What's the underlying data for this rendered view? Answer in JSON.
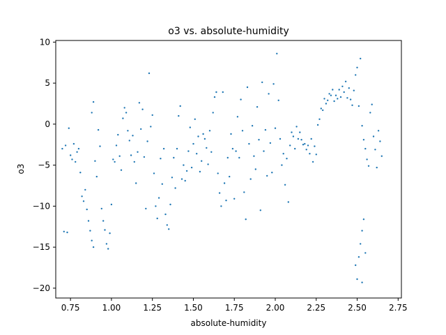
{
  "chart_data": {
    "type": "scatter",
    "title": "o3 vs. absolute-humidity",
    "xlabel": "absolute-humidity",
    "ylabel": "o3",
    "xlim": [
      0.66,
      2.77
    ],
    "ylim": [
      -21.2,
      10.2
    ],
    "x_ticks": [
      0.75,
      1.0,
      1.25,
      1.5,
      1.75,
      2.0,
      2.25,
      2.5,
      2.75
    ],
    "x_tick_labels": [
      "0.75",
      "1.00",
      "1.25",
      "1.50",
      "1.75",
      "2.00",
      "2.25",
      "2.50",
      "2.75"
    ],
    "y_ticks": [
      -20,
      -15,
      -10,
      -5,
      0,
      5,
      10
    ],
    "y_tick_labels": [
      "−20",
      "−15",
      "−10",
      "−5",
      "0",
      "5",
      "10"
    ],
    "grid": false,
    "marker_color": "#1f77b4",
    "series": [
      {
        "values": [
          [
            0.7,
            -3.0
          ],
          [
            0.71,
            -13.1
          ],
          [
            0.72,
            -2.6
          ],
          [
            0.73,
            -13.2
          ],
          [
            0.74,
            -0.5
          ],
          [
            0.75,
            -3.8
          ],
          [
            0.76,
            -4.3
          ],
          [
            0.77,
            -2.4
          ],
          [
            0.78,
            -4.6
          ],
          [
            0.79,
            -3.4
          ],
          [
            0.8,
            -3.0
          ],
          [
            0.81,
            -5.9
          ],
          [
            0.82,
            -8.8
          ],
          [
            0.83,
            -9.4
          ],
          [
            0.84,
            -8.0
          ],
          [
            0.85,
            -10.4
          ],
          [
            0.86,
            -11.8
          ],
          [
            0.87,
            -13.0
          ],
          [
            0.88,
            -14.2
          ],
          [
            0.88,
            1.4
          ],
          [
            0.89,
            2.7
          ],
          [
            0.89,
            -15.0
          ],
          [
            0.9,
            -4.5
          ],
          [
            0.91,
            -6.4
          ],
          [
            0.92,
            -0.7
          ],
          [
            0.93,
            -2.7
          ],
          [
            0.94,
            -10.3
          ],
          [
            0.95,
            -11.8
          ],
          [
            0.96,
            -12.9
          ],
          [
            0.97,
            -14.6
          ],
          [
            0.98,
            -15.2
          ],
          [
            0.99,
            -13.3
          ],
          [
            1.0,
            -9.8
          ],
          [
            1.01,
            -4.3
          ],
          [
            1.02,
            -4.6
          ],
          [
            1.03,
            -2.6
          ],
          [
            1.04,
            -1.3
          ],
          [
            1.05,
            -3.9
          ],
          [
            1.06,
            -5.6
          ],
          [
            1.07,
            0.7
          ],
          [
            1.08,
            2.0
          ],
          [
            1.09,
            1.4
          ],
          [
            1.1,
            -0.8
          ],
          [
            1.11,
            -2.0
          ],
          [
            1.12,
            -3.8
          ],
          [
            1.13,
            -1.4
          ],
          [
            1.14,
            -4.6
          ],
          [
            1.15,
            -7.2
          ],
          [
            1.16,
            -3.4
          ],
          [
            1.17,
            2.6
          ],
          [
            1.18,
            -0.6
          ],
          [
            1.19,
            1.8
          ],
          [
            1.2,
            -4.0
          ],
          [
            1.21,
            -10.3
          ],
          [
            1.22,
            -2.1
          ],
          [
            1.23,
            6.2
          ],
          [
            1.24,
            -0.3
          ],
          [
            1.25,
            1.1
          ],
          [
            1.26,
            -6.0
          ],
          [
            1.27,
            -10.0
          ],
          [
            1.28,
            -11.5
          ],
          [
            1.29,
            -9.0
          ],
          [
            1.3,
            -4.2
          ],
          [
            1.31,
            -7.3
          ],
          [
            1.32,
            -3.0
          ],
          [
            1.33,
            -11.0
          ],
          [
            1.34,
            -12.3
          ],
          [
            1.35,
            -12.8
          ],
          [
            1.36,
            -9.8
          ],
          [
            1.37,
            -6.5
          ],
          [
            1.38,
            -4.1
          ],
          [
            1.39,
            -7.8
          ],
          [
            1.4,
            -3.0
          ],
          [
            1.41,
            1.0
          ],
          [
            1.42,
            2.2
          ],
          [
            1.43,
            -6.7
          ],
          [
            1.44,
            -5.0
          ],
          [
            1.45,
            -6.9
          ],
          [
            1.46,
            -5.7
          ],
          [
            1.47,
            -3.3
          ],
          [
            1.48,
            -0.4
          ],
          [
            1.49,
            -5.3
          ],
          [
            1.5,
            -2.4
          ],
          [
            1.51,
            0.6
          ],
          [
            1.52,
            -3.6
          ],
          [
            1.53,
            -1.5
          ],
          [
            1.54,
            -5.8
          ],
          [
            1.55,
            -4.5
          ],
          [
            1.56,
            -1.2
          ],
          [
            1.57,
            -1.8
          ],
          [
            1.58,
            -2.9
          ],
          [
            1.59,
            -4.9
          ],
          [
            1.6,
            -0.8
          ],
          [
            1.61,
            -3.4
          ],
          [
            1.62,
            1.4
          ],
          [
            1.63,
            3.3
          ],
          [
            1.64,
            3.9
          ],
          [
            1.65,
            -6.0
          ],
          [
            1.66,
            -8.4
          ],
          [
            1.67,
            -10.0
          ],
          [
            1.68,
            3.9
          ],
          [
            1.69,
            -7.2
          ],
          [
            1.7,
            -9.3
          ],
          [
            1.71,
            -4.1
          ],
          [
            1.72,
            -6.4
          ],
          [
            1.73,
            -1.2
          ],
          [
            1.74,
            -3.0
          ],
          [
            1.75,
            -9.1
          ],
          [
            1.76,
            -3.3
          ],
          [
            1.77,
            0.9
          ],
          [
            1.78,
            -4.1
          ],
          [
            1.79,
            3.0
          ],
          [
            1.8,
            -0.8
          ],
          [
            1.81,
            -8.3
          ],
          [
            1.82,
            -11.6
          ],
          [
            1.83,
            4.5
          ],
          [
            1.84,
            -2.4
          ],
          [
            1.85,
            -6.7
          ],
          [
            1.86,
            -0.2
          ],
          [
            1.87,
            -3.9
          ],
          [
            1.88,
            -5.5
          ],
          [
            1.89,
            2.1
          ],
          [
            1.9,
            -1.9
          ],
          [
            1.91,
            -10.5
          ],
          [
            1.92,
            5.1
          ],
          [
            1.93,
            -3.3
          ],
          [
            1.94,
            -0.7
          ],
          [
            1.95,
            -6.3
          ],
          [
            1.96,
            3.7
          ],
          [
            1.97,
            -2.3
          ],
          [
            1.98,
            -5.9
          ],
          [
            1.99,
            4.9
          ],
          [
            2.0,
            -0.5
          ],
          [
            2.01,
            8.6
          ],
          [
            2.02,
            2.9
          ],
          [
            2.03,
            -1.8
          ],
          [
            2.04,
            -5.0
          ],
          [
            2.05,
            -3.6
          ],
          [
            2.06,
            -7.4
          ],
          [
            2.07,
            -4.2
          ],
          [
            2.08,
            -9.5
          ],
          [
            2.09,
            -2.6
          ],
          [
            2.1,
            -1.0
          ],
          [
            2.11,
            -1.5
          ],
          [
            2.12,
            -3.0
          ],
          [
            2.13,
            -0.3
          ],
          [
            2.14,
            -1.8
          ],
          [
            2.15,
            -1.0
          ],
          [
            2.16,
            -1.9
          ],
          [
            2.17,
            -2.5
          ],
          [
            2.18,
            -2.4
          ],
          [
            2.19,
            -3.1
          ],
          [
            2.2,
            -2.6
          ],
          [
            2.21,
            -3.6
          ],
          [
            2.22,
            -1.8
          ],
          [
            2.23,
            -4.6
          ],
          [
            2.24,
            -2.7
          ],
          [
            2.25,
            -3.7
          ],
          [
            2.26,
            -0.1
          ],
          [
            2.27,
            0.6
          ],
          [
            2.28,
            1.9
          ],
          [
            2.29,
            1.7
          ],
          [
            2.3,
            3.1
          ],
          [
            2.31,
            2.5
          ],
          [
            2.32,
            2.9
          ],
          [
            2.33,
            3.7
          ],
          [
            2.34,
            3.5
          ],
          [
            2.35,
            4.2
          ],
          [
            2.36,
            2.8
          ],
          [
            2.37,
            3.5
          ],
          [
            2.38,
            3.1
          ],
          [
            2.39,
            4.2
          ],
          [
            2.4,
            3.3
          ],
          [
            2.41,
            4.6
          ],
          [
            2.42,
            3.9
          ],
          [
            2.43,
            5.2
          ],
          [
            2.44,
            3.2
          ],
          [
            2.45,
            4.4
          ],
          [
            2.46,
            3.0
          ],
          [
            2.47,
            2.3
          ],
          [
            2.48,
            4.1
          ],
          [
            2.49,
            6.0
          ],
          [
            2.5,
            6.9
          ],
          [
            2.51,
            2.2
          ],
          [
            2.52,
            8.0
          ],
          [
            2.53,
            -0.2
          ],
          [
            2.54,
            -1.9
          ],
          [
            2.55,
            -3.0
          ],
          [
            2.56,
            -4.3
          ],
          [
            2.57,
            -5.1
          ],
          [
            2.58,
            1.4
          ],
          [
            2.59,
            2.4
          ],
          [
            2.6,
            -1.5
          ],
          [
            2.61,
            -3.1
          ],
          [
            2.62,
            -5.3
          ],
          [
            2.63,
            -0.8
          ],
          [
            2.64,
            -2.1
          ],
          [
            2.65,
            -3.9
          ],
          [
            2.49,
            -17.2
          ],
          [
            2.5,
            -18.9
          ],
          [
            2.51,
            -16.2
          ],
          [
            2.52,
            -14.6
          ],
          [
            2.53,
            -19.3
          ],
          [
            2.53,
            -13.0
          ],
          [
            2.54,
            -11.6
          ],
          [
            2.55,
            -15.7
          ]
        ]
      }
    ]
  }
}
